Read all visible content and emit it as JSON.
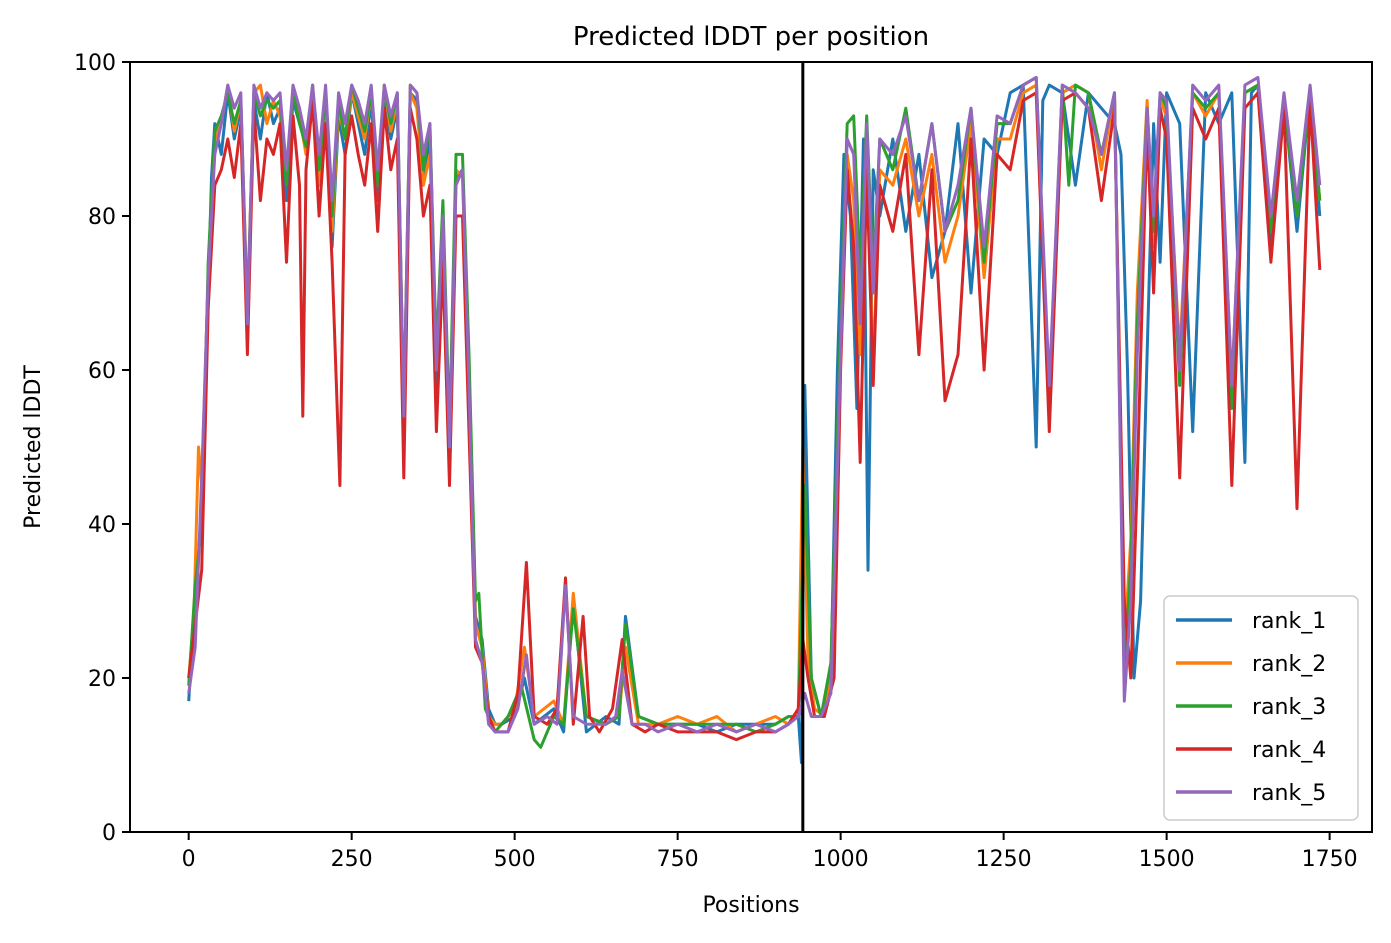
{
  "chart_data": {
    "type": "line",
    "title": "Predicted lDDT per position",
    "xlabel": "Positions",
    "ylabel": "Predicted lDDT",
    "xlim": [
      -90,
      1815
    ],
    "ylim": [
      0,
      100
    ],
    "xticks": [
      0,
      250,
      500,
      750,
      1000,
      1250,
      1500,
      1750
    ],
    "yticks": [
      0,
      20,
      40,
      60,
      80,
      100
    ],
    "grid": false,
    "legend_position": "lower-right",
    "chain_break_x": 942,
    "series": [
      {
        "name": "rank_1",
        "color": "#1f77b4",
        "x": [
          0,
          10,
          20,
          30,
          35,
          40,
          50,
          60,
          70,
          80,
          90,
          100,
          110,
          120,
          130,
          140,
          150,
          160,
          170,
          180,
          190,
          200,
          210,
          220,
          230,
          240,
          250,
          260,
          270,
          280,
          290,
          300,
          310,
          320,
          330,
          340,
          350,
          360,
          370,
          380,
          390,
          400,
          410,
          420,
          430,
          440,
          450,
          460,
          470,
          480,
          500,
          515,
          530,
          560,
          575,
          590,
          610,
          640,
          660,
          670,
          690,
          720,
          750,
          780,
          810,
          840,
          870,
          900,
          920,
          935,
          940,
          945,
          955,
          970,
          985,
          995,
          1005,
          1015,
          1025,
          1035,
          1042,
          1050,
          1060,
          1080,
          1100,
          1120,
          1140,
          1160,
          1180,
          1200,
          1220,
          1240,
          1260,
          1280,
          1300,
          1310,
          1320,
          1340,
          1360,
          1380,
          1400,
          1420,
          1430,
          1440,
          1450,
          1460,
          1470,
          1480,
          1490,
          1500,
          1520,
          1540,
          1560,
          1580,
          1600,
          1620,
          1630,
          1640,
          1660,
          1680,
          1700,
          1720,
          1735
        ],
        "y": [
          17,
          30,
          42,
          70,
          85,
          92,
          88,
          96,
          90,
          94,
          66,
          95,
          90,
          96,
          92,
          94,
          82,
          95,
          92,
          90,
          96,
          85,
          94,
          76,
          93,
          88,
          96,
          92,
          88,
          95,
          82,
          96,
          90,
          94,
          52,
          96,
          95,
          85,
          90,
          58,
          80,
          48,
          85,
          86,
          60,
          28,
          25,
          16,
          14,
          14,
          15,
          20,
          14,
          16,
          13,
          30,
          13,
          15,
          14,
          28,
          15,
          14,
          14,
          14,
          13,
          14,
          14,
          14,
          15,
          15,
          9,
          58,
          20,
          15,
          20,
          60,
          88,
          80,
          55,
          90,
          34,
          86,
          80,
          90,
          78,
          88,
          72,
          78,
          92,
          70,
          90,
          88,
          96,
          97,
          50,
          95,
          97,
          96,
          84,
          96,
          94,
          92,
          88,
          60,
          20,
          30,
          62,
          92,
          74,
          96,
          92,
          52,
          96,
          92,
          96,
          48,
          96,
          97,
          76,
          95,
          78,
          96,
          80
        ]
      },
      {
        "name": "rank_2",
        "color": "#ff7f0e",
        "x": [
          0,
          8,
          15,
          20,
          30,
          40,
          50,
          60,
          70,
          80,
          90,
          100,
          110,
          120,
          130,
          140,
          150,
          160,
          170,
          180,
          190,
          200,
          210,
          220,
          230,
          240,
          250,
          260,
          270,
          280,
          290,
          300,
          310,
          320,
          330,
          340,
          350,
          360,
          370,
          380,
          390,
          400,
          410,
          420,
          430,
          440,
          450,
          460,
          470,
          480,
          500,
          515,
          530,
          560,
          575,
          590,
          610,
          640,
          660,
          670,
          690,
          720,
          750,
          780,
          810,
          840,
          870,
          900,
          920,
          935,
          942,
          950,
          960,
          975,
          990,
          1000,
          1010,
          1020,
          1030,
          1040,
          1050,
          1060,
          1080,
          1100,
          1120,
          1140,
          1160,
          1180,
          1200,
          1220,
          1240,
          1260,
          1280,
          1300,
          1320,
          1340,
          1360,
          1380,
          1400,
          1420,
          1435,
          1445,
          1455,
          1470,
          1480,
          1490,
          1500,
          1520,
          1540,
          1560,
          1580,
          1600,
          1620,
          1640,
          1660,
          1680,
          1700,
          1720,
          1735
        ],
        "y": [
          20,
          28,
          50,
          45,
          72,
          90,
          92,
          97,
          91,
          95,
          68,
          96,
          97,
          92,
          95,
          93,
          85,
          96,
          93,
          88,
          97,
          84,
          95,
          78,
          94,
          90,
          96,
          93,
          90,
          96,
          84,
          97,
          91,
          95,
          55,
          96,
          94,
          84,
          88,
          60,
          78,
          50,
          86,
          85,
          58,
          27,
          24,
          15,
          14,
          14,
          16,
          24,
          15,
          17,
          14,
          31,
          15,
          14,
          15,
          24,
          14,
          14,
          15,
          14,
          15,
          13,
          14,
          15,
          14,
          16,
          50,
          22,
          16,
          15,
          22,
          62,
          88,
          82,
          62,
          90,
          60,
          86,
          84,
          90,
          80,
          88,
          74,
          80,
          92,
          72,
          90,
          90,
          96,
          97,
          55,
          96,
          97,
          96,
          86,
          96,
          24,
          38,
          70,
          95,
          76,
          95,
          93,
          62,
          96,
          93,
          96,
          58,
          96,
          97,
          78,
          95,
          80,
          96,
          82
        ]
      },
      {
        "name": "rank_3",
        "color": "#2ca02c",
        "x": [
          0,
          10,
          20,
          30,
          40,
          50,
          60,
          70,
          80,
          90,
          100,
          110,
          120,
          130,
          140,
          150,
          160,
          170,
          180,
          190,
          200,
          210,
          220,
          230,
          240,
          250,
          260,
          270,
          280,
          290,
          300,
          310,
          320,
          330,
          340,
          350,
          360,
          370,
          380,
          390,
          400,
          410,
          420,
          430,
          440,
          445,
          455,
          470,
          490,
          510,
          530,
          540,
          560,
          575,
          590,
          610,
          640,
          660,
          670,
          690,
          720,
          750,
          780,
          810,
          840,
          870,
          900,
          920,
          935,
          945,
          955,
          970,
          985,
          1000,
          1010,
          1020,
          1030,
          1040,
          1050,
          1060,
          1080,
          1100,
          1120,
          1140,
          1160,
          1180,
          1200,
          1220,
          1240,
          1260,
          1280,
          1300,
          1320,
          1340,
          1350,
          1360,
          1380,
          1400,
          1420,
          1435,
          1445,
          1455,
          1470,
          1480,
          1490,
          1500,
          1520,
          1540,
          1560,
          1580,
          1600,
          1620,
          1640,
          1660,
          1680,
          1700,
          1720,
          1735
        ],
        "y": [
          19,
          32,
          40,
          74,
          91,
          93,
          96,
          92,
          95,
          67,
          96,
          93,
          95,
          94,
          95,
          84,
          96,
          92,
          89,
          97,
          86,
          96,
          80,
          95,
          90,
          97,
          94,
          91,
          96,
          84,
          97,
          92,
          96,
          54,
          97,
          96,
          86,
          92,
          62,
          82,
          52,
          88,
          88,
          62,
          30,
          31,
          16,
          13,
          15,
          19,
          12,
          11,
          15,
          14,
          29,
          15,
          14,
          15,
          27,
          15,
          14,
          14,
          14,
          14,
          14,
          13,
          14,
          15,
          15,
          45,
          20,
          15,
          22,
          66,
          92,
          93,
          72,
          93,
          72,
          90,
          86,
          94,
          82,
          92,
          78,
          82,
          94,
          74,
          92,
          92,
          97,
          98,
          56,
          97,
          84,
          97,
          96,
          88,
          96,
          20,
          35,
          66,
          94,
          78,
          96,
          94,
          58,
          96,
          94,
          96,
          55,
          96,
          97,
          78,
          95,
          80,
          96,
          82
        ]
      },
      {
        "name": "rank_4",
        "color": "#d62728",
        "x": [
          0,
          10,
          20,
          30,
          40,
          50,
          60,
          70,
          80,
          90,
          100,
          110,
          120,
          130,
          140,
          150,
          160,
          170,
          175,
          180,
          190,
          200,
          210,
          220,
          232,
          240,
          250,
          260,
          270,
          280,
          290,
          300,
          310,
          320,
          330,
          340,
          350,
          360,
          370,
          380,
          390,
          400,
          410,
          420,
          430,
          440,
          450,
          460,
          470,
          490,
          505,
          518,
          530,
          550,
          565,
          578,
          590,
          605,
          615,
          630,
          650,
          665,
          680,
          700,
          720,
          750,
          780,
          810,
          840,
          870,
          900,
          920,
          935,
          942,
          950,
          960,
          975,
          990,
          1000,
          1010,
          1020,
          1030,
          1040,
          1050,
          1060,
          1080,
          1100,
          1120,
          1140,
          1160,
          1180,
          1200,
          1220,
          1240,
          1260,
          1280,
          1300,
          1320,
          1340,
          1360,
          1380,
          1400,
          1420,
          1435,
          1445,
          1455,
          1470,
          1480,
          1490,
          1500,
          1520,
          1540,
          1560,
          1580,
          1600,
          1620,
          1640,
          1660,
          1680,
          1700,
          1720,
          1735
        ],
        "y": [
          20,
          27,
          34,
          68,
          84,
          86,
          90,
          85,
          92,
          62,
          94,
          82,
          90,
          88,
          92,
          74,
          93,
          84,
          54,
          86,
          95,
          80,
          92,
          74,
          45,
          88,
          93,
          88,
          84,
          92,
          78,
          94,
          86,
          90,
          46,
          94,
          90,
          80,
          84,
          52,
          74,
          45,
          80,
          80,
          52,
          24,
          22,
          15,
          13,
          13,
          18,
          35,
          15,
          14,
          16,
          33,
          14,
          28,
          15,
          13,
          16,
          25,
          14,
          13,
          14,
          13,
          13,
          13,
          12,
          13,
          13,
          14,
          16,
          25,
          20,
          15,
          15,
          20,
          60,
          86,
          76,
          48,
          86,
          58,
          84,
          78,
          88,
          62,
          86,
          56,
          62,
          90,
          60,
          88,
          86,
          95,
          96,
          52,
          95,
          96,
          94,
          82,
          94,
          30,
          20,
          46,
          92,
          70,
          94,
          90,
          46,
          94,
          90,
          94,
          45,
          94,
          96,
          74,
          94,
          42,
          95,
          73
        ]
      },
      {
        "name": "rank_5",
        "color": "#9467bd",
        "x": [
          0,
          10,
          20,
          30,
          40,
          50,
          60,
          70,
          80,
          90,
          100,
          110,
          120,
          130,
          140,
          150,
          160,
          170,
          180,
          190,
          200,
          210,
          220,
          230,
          240,
          250,
          260,
          270,
          280,
          290,
          300,
          310,
          320,
          330,
          340,
          350,
          360,
          370,
          380,
          390,
          400,
          410,
          420,
          430,
          440,
          450,
          460,
          470,
          490,
          505,
          518,
          530,
          550,
          565,
          578,
          590,
          610,
          640,
          655,
          665,
          680,
          700,
          720,
          750,
          780,
          810,
          840,
          870,
          900,
          920,
          935,
          945,
          955,
          970,
          985,
          1000,
          1010,
          1020,
          1030,
          1040,
          1050,
          1060,
          1080,
          1100,
          1120,
          1140,
          1160,
          1180,
          1200,
          1220,
          1240,
          1260,
          1280,
          1300,
          1320,
          1340,
          1360,
          1380,
          1400,
          1420,
          1435,
          1445,
          1455,
          1470,
          1480,
          1490,
          1500,
          1520,
          1540,
          1560,
          1580,
          1600,
          1620,
          1640,
          1660,
          1680,
          1700,
          1720,
          1735
        ],
        "y": [
          18,
          24,
          46,
          72,
          88,
          92,
          97,
          94,
          96,
          66,
          97,
          94,
          96,
          95,
          96,
          86,
          97,
          94,
          90,
          97,
          88,
          97,
          82,
          96,
          92,
          97,
          95,
          92,
          97,
          86,
          97,
          93,
          96,
          54,
          97,
          96,
          88,
          92,
          60,
          80,
          50,
          84,
          86,
          58,
          25,
          22,
          14,
          13,
          13,
          16,
          23,
          14,
          15,
          14,
          32,
          15,
          14,
          14,
          15,
          21,
          14,
          14,
          13,
          14,
          13,
          14,
          13,
          14,
          13,
          14,
          15,
          18,
          15,
          15,
          18,
          62,
          90,
          88,
          66,
          92,
          70,
          90,
          88,
          93,
          82,
          92,
          78,
          84,
          94,
          76,
          93,
          92,
          97,
          98,
          58,
          97,
          96,
          94,
          88,
          96,
          17,
          30,
          62,
          94,
          80,
          96,
          95,
          60,
          97,
          95,
          97,
          58,
          97,
          98,
          80,
          96,
          82,
          97,
          84
        ]
      }
    ]
  }
}
